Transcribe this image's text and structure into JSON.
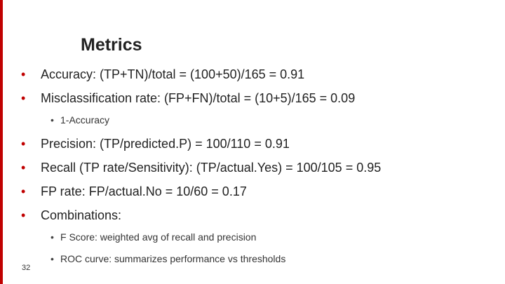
{
  "title": "Metrics",
  "items": [
    {
      "text": "Accuracy:  (TP+TN)/total = (100+50)/165 = 0.91",
      "subitems": []
    },
    {
      "text": "Misclassification rate: (FP+FN)/total = (10+5)/165 = 0.09",
      "subitems": [
        "1-Accuracy"
      ]
    },
    {
      "text": "Precision:  (TP/predicted.P) = 100/110 = 0.91",
      "subitems": []
    },
    {
      "text": "Recall (TP rate/Sensitivity):  (TP/actual.Yes) = 100/105 = 0.95",
      "subitems": []
    },
    {
      "text": "FP rate: FP/actual.No = 10/60 = 0.17",
      "subitems": []
    },
    {
      "text": "Combinations:",
      "subitems": [
        "F Score:  weighted avg of recall and precision",
        "ROC curve:  summarizes performance vs thresholds"
      ]
    }
  ],
  "slide_number": "32"
}
